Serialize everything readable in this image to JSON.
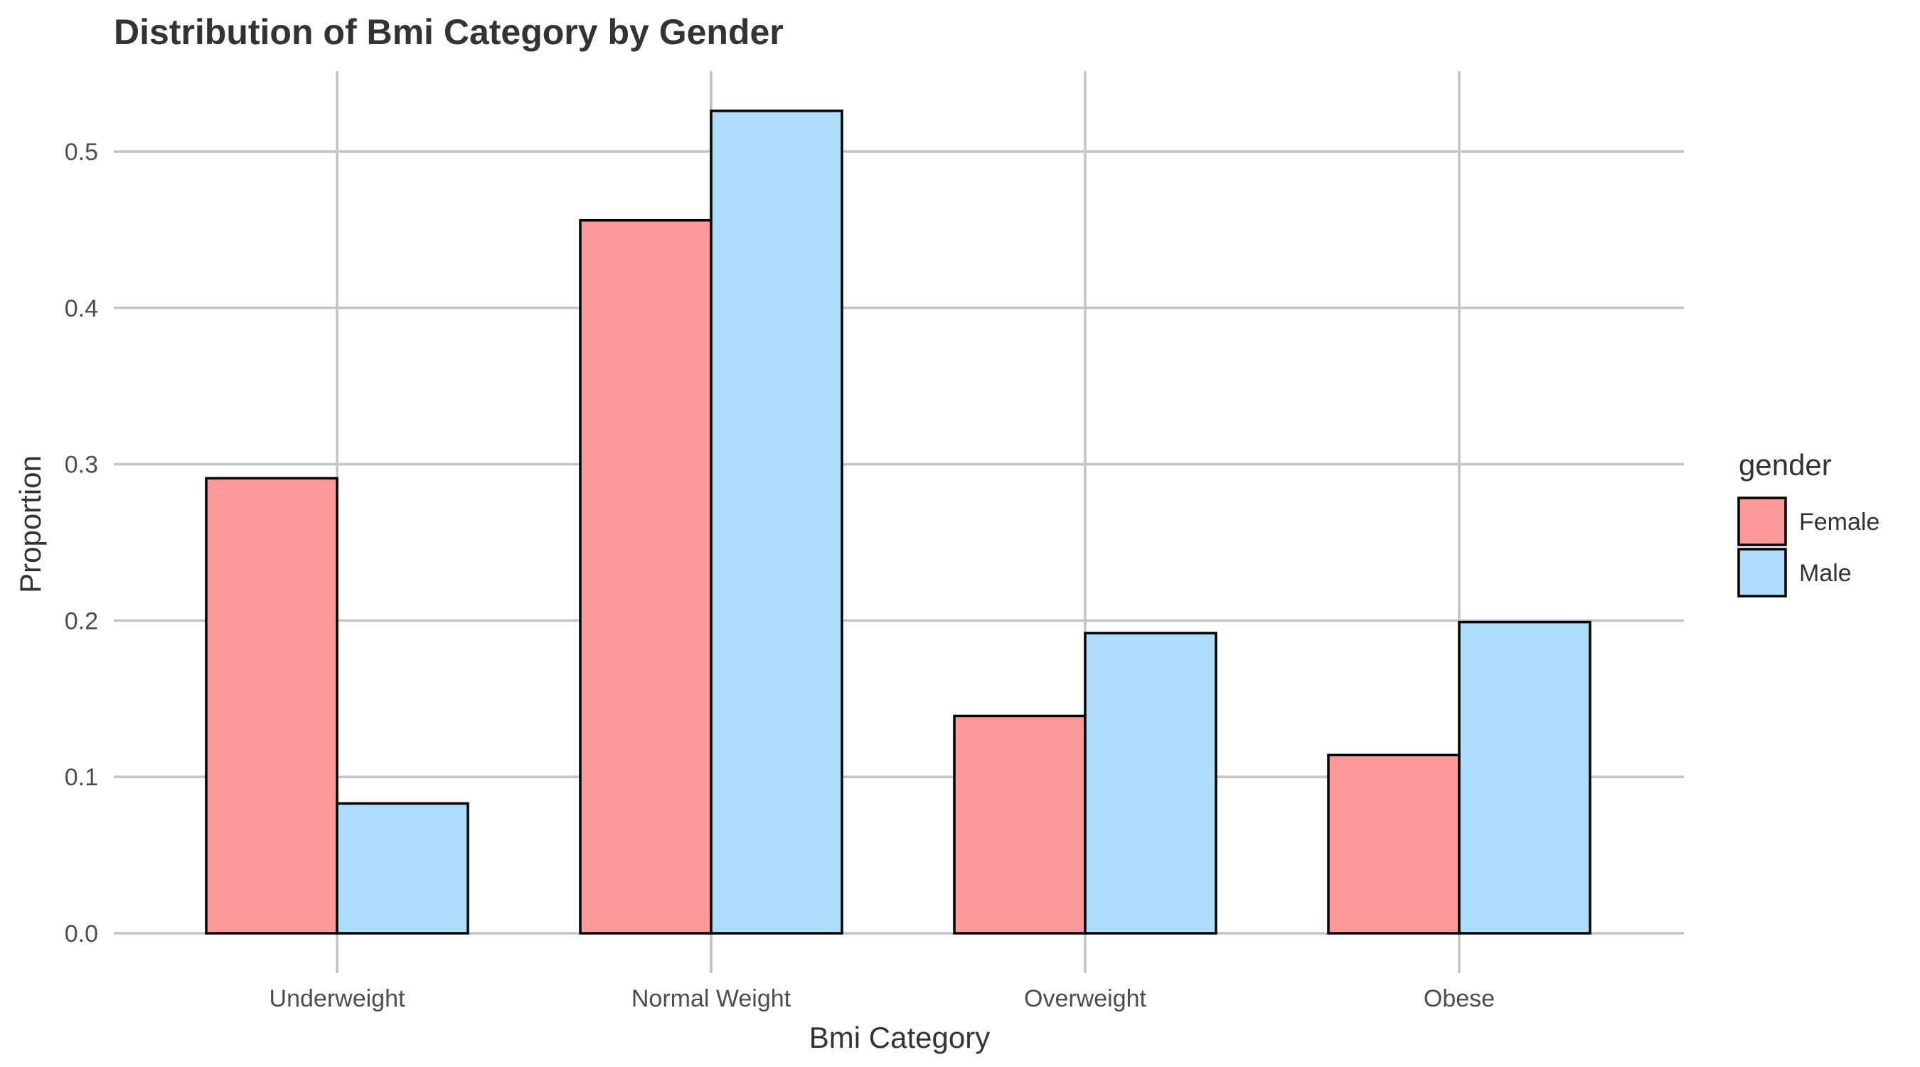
{
  "chart_data": {
    "type": "bar",
    "title": "Distribution of Bmi Category by Gender",
    "xlabel": "Bmi Category",
    "ylabel": "Proportion",
    "categories": [
      "Underweight",
      "Normal Weight",
      "Overweight",
      "Obese"
    ],
    "series": [
      {
        "name": "Female",
        "values": [
          0.291,
          0.456,
          0.139,
          0.114
        ],
        "color": "#FF9999"
      },
      {
        "name": "Male",
        "values": [
          0.083,
          0.526,
          0.192,
          0.199
        ],
        "color": "#ADDDFB"
      }
    ],
    "ylim": [
      0,
      0.55
    ],
    "yticks": [
      0.0,
      0.1,
      0.2,
      0.3,
      0.4,
      0.5
    ],
    "ytick_labels": [
      "0.0",
      "0.1",
      "0.2",
      "0.3",
      "0.4",
      "0.5"
    ],
    "grid": true,
    "legend": {
      "title": "gender",
      "position": "right"
    }
  }
}
